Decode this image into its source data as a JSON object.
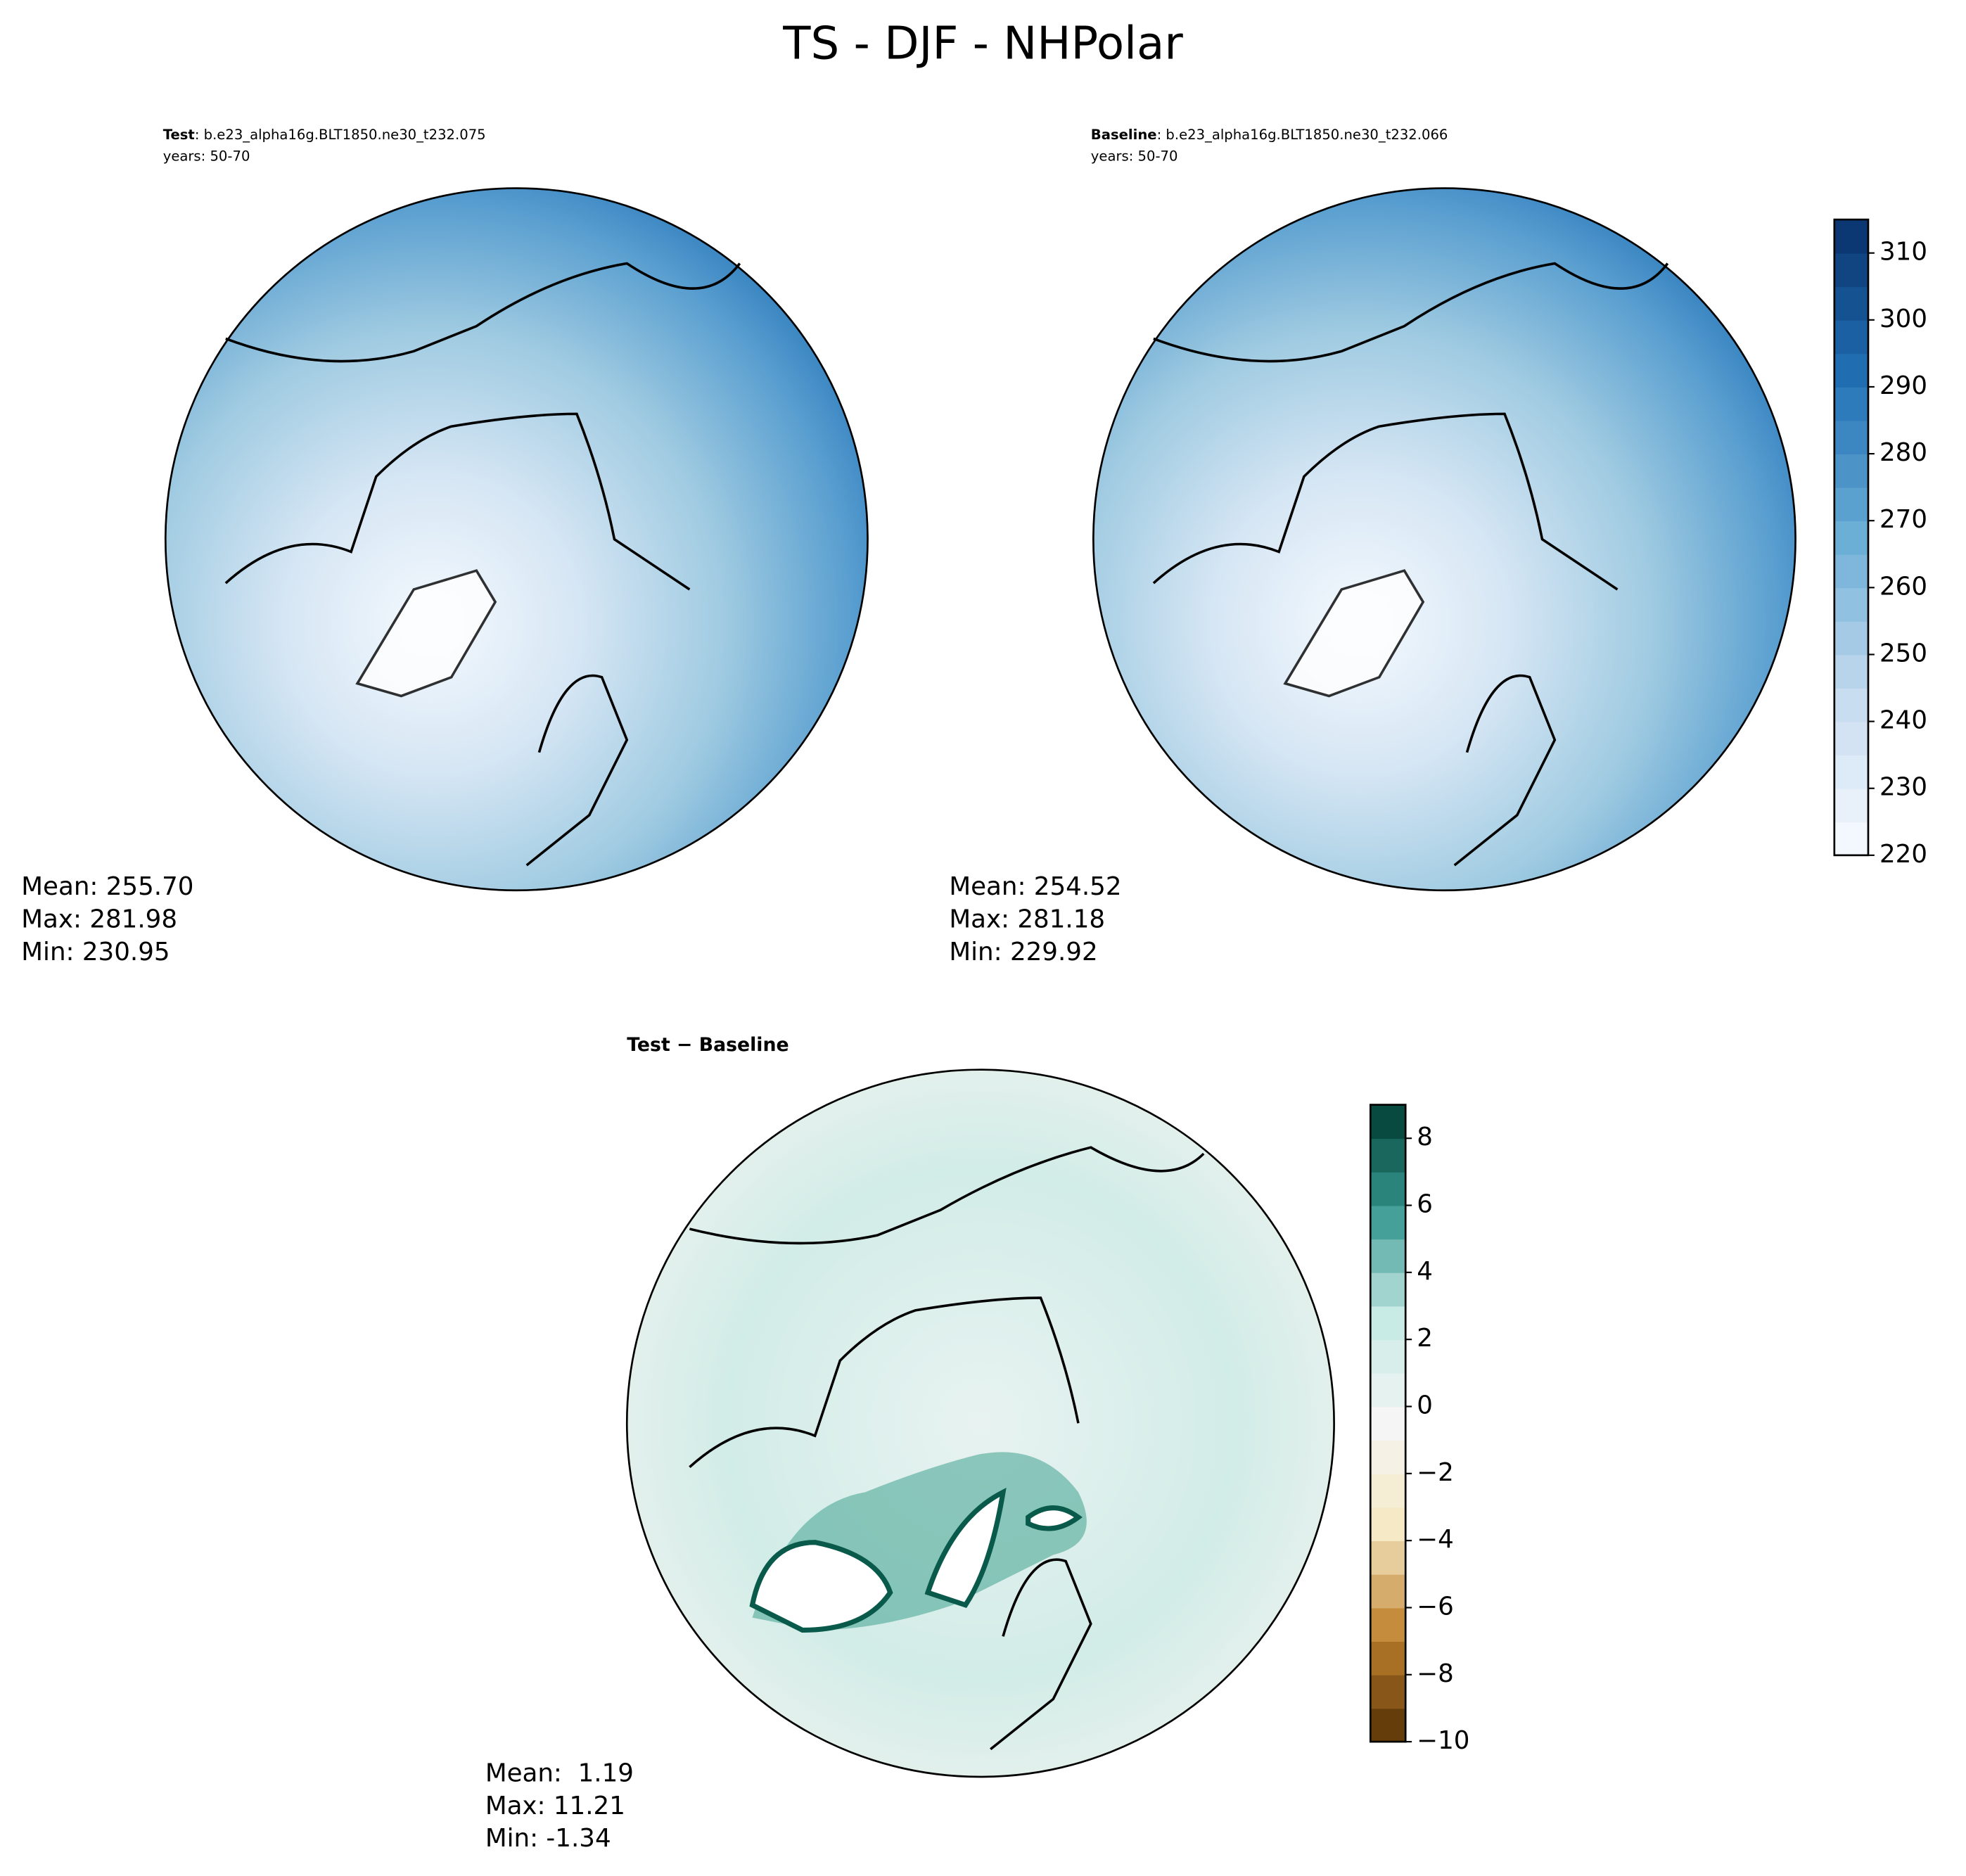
{
  "title": "TS - DJF - NHPolar",
  "panels": [
    {
      "label": "Test",
      "case": ": b.e23_alpha16g.BLT1850.ne30_t232.075",
      "years": "years: 50-70",
      "stats": [
        "Mean: 255.70",
        "Max: 281.98",
        "Min: 230.95"
      ]
    },
    {
      "label": "Baseline",
      "case": ": b.e23_alpha16g.BLT1850.ne30_t232.066",
      "years": "years: 50-70",
      "stats": [
        "Mean: 254.52",
        "Max: 281.18",
        "Min: 229.92"
      ]
    },
    {
      "label": "Test − Baseline",
      "stats": [
        "Mean:  1.19",
        "Max: 11.21",
        "Min: -1.34"
      ]
    }
  ],
  "colorbars": [
    {
      "range": [
        220,
        315
      ],
      "step": 5,
      "ticks": [
        220,
        230,
        240,
        250,
        260,
        270,
        280,
        290,
        300,
        310
      ],
      "colors": [
        "#f7fbff",
        "#c6dbef",
        "#6baed6",
        "#2171b5",
        "#08306b"
      ]
    },
    {
      "range": [
        -10,
        9
      ],
      "step": 1,
      "ticks": [
        {
          "value": -10,
          "label": "−10"
        },
        {
          "value": -8,
          "label": "−8"
        },
        {
          "value": -6,
          "label": "−6"
        },
        {
          "value": -4,
          "label": "−4"
        },
        {
          "value": -2,
          "label": "−2"
        },
        0,
        2,
        4,
        6,
        8
      ],
      "colors": [
        "#543005",
        "#bf812d",
        "#f6e8c3",
        "#f5f5f5",
        "#c7eae5",
        "#35978f",
        "#003c30"
      ]
    }
  ]
}
